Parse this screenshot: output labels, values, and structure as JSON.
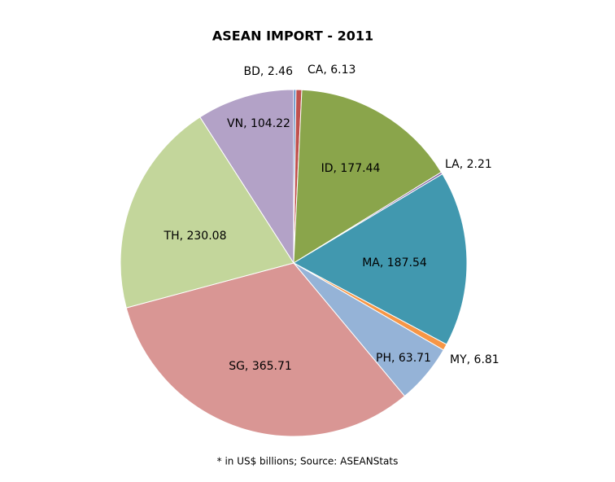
{
  "chart_data": {
    "type": "pie",
    "title": "ASEAN IMPORT - 2011",
    "note": "* in US$ billions; Source: ASEANStats",
    "values": [
      2.46,
      6.13,
      177.44,
      2.21,
      187.54,
      6.81,
      63.71,
      365.71,
      230.08,
      104.22
    ],
    "value_labels": [
      "BD, 2.46",
      "CA, 6.13",
      "ID, 177.44",
      "LA, 2.21",
      "MA, 187.54",
      "MY, 6.81",
      "PH, 63.71",
      "SG, 365.71",
      "TH, 230.08",
      "VN, 104.22"
    ],
    "colors": [
      "#4f81bd",
      "#c0504d",
      "#8aa54b",
      "#8064a2",
      "#4198af",
      "#f79646",
      "#95b3d7",
      "#d99694",
      "#c3d69b",
      "#b3a2c7"
    ]
  }
}
